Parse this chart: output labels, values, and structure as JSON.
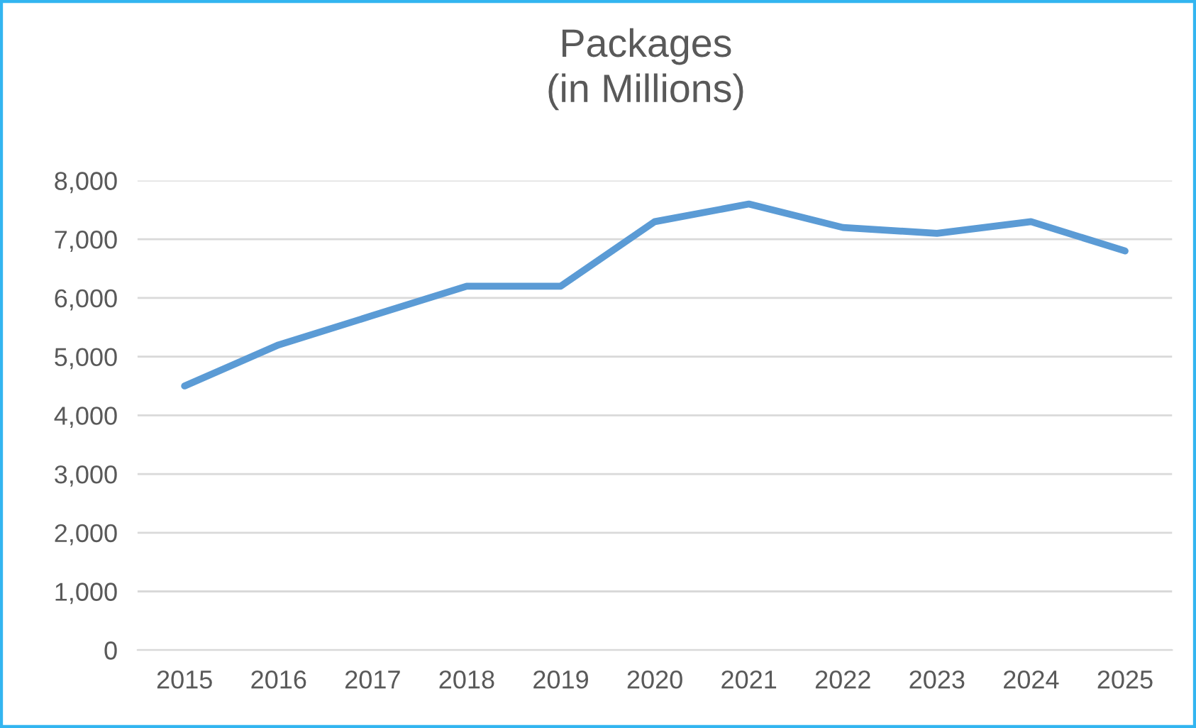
{
  "chart_data": {
    "type": "line",
    "title": "Packages\n(in Millions)",
    "categories": [
      "2015",
      "2016",
      "2017",
      "2018",
      "2019",
      "2020",
      "2021",
      "2022",
      "2023",
      "2024",
      "2025"
    ],
    "series": [
      {
        "color": "#5b9bd5",
        "values": [
          4500,
          5200,
          5700,
          6200,
          6200,
          7300,
          7600,
          7200,
          7100,
          7300,
          6800
        ]
      }
    ],
    "ylim": [
      0,
      8000
    ],
    "yticks": [
      {
        "value": 0,
        "label": "0"
      },
      {
        "value": 1000,
        "label": "1,000"
      },
      {
        "value": 2000,
        "label": "2,000"
      },
      {
        "value": 3000,
        "label": "3,000"
      },
      {
        "value": 4000,
        "label": "4,000"
      },
      {
        "value": 5000,
        "label": "5,000"
      },
      {
        "value": 6000,
        "label": "6,000"
      },
      {
        "value": 7000,
        "label": "7,000"
      },
      {
        "value": 8000,
        "label": "8,000"
      }
    ],
    "grid": "y",
    "marker": "none",
    "line_style": "solid"
  }
}
